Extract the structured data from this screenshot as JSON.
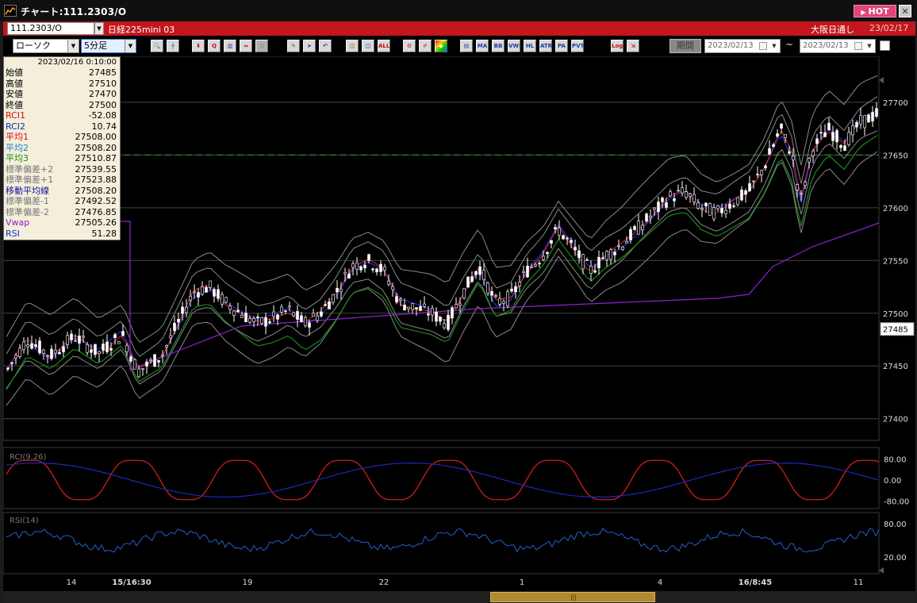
{
  "window": {
    "title": "チャート:111.2303/O",
    "hot_label": "HOT",
    "close_label": "✕"
  },
  "symbol_bar": {
    "code": "111.2303/O",
    "name": "日経225mini 03",
    "market": "大阪日通し",
    "date": "23/02/17"
  },
  "toolbar": {
    "chart_type": "ローソク",
    "interval": "5分足",
    "period_label": "期間",
    "date_from": "2023/02/13",
    "date_to": "2023/02/13",
    "tilde": "~",
    "buttons": [
      {
        "icon": "zoom-icon",
        "label": "🔍",
        "style": ""
      },
      {
        "icon": "crosshair-icon",
        "label": "┼",
        "style": ""
      },
      {
        "icon": "download-icon",
        "label": "⬇",
        "style": "red"
      },
      {
        "icon": "magnify-chart-icon",
        "label": "Q",
        "style": "red"
      },
      {
        "icon": "bar-chart-icon",
        "label": "▥",
        "style": ""
      },
      {
        "icon": "split-icon",
        "label": "⇔",
        "style": "red"
      },
      {
        "icon": "disabled-icon",
        "label": "▦",
        "style": "dis"
      },
      {
        "icon": "pencil-icon",
        "label": "✎",
        "style": "grn"
      },
      {
        "icon": "pointer-icon",
        "label": "➤",
        "style": ""
      },
      {
        "icon": "undo-icon",
        "label": "↶",
        "style": ""
      },
      {
        "icon": "box-icon",
        "label": "◫",
        "style": "red"
      },
      {
        "icon": "box-alt-icon",
        "label": "◫",
        "style": ""
      },
      {
        "icon": "all-icon",
        "label": "ALL",
        "style": "red"
      },
      {
        "icon": "settings-icon",
        "label": "⚙",
        "style": "red"
      },
      {
        "icon": "brush-icon",
        "label": "✐",
        "style": "red"
      },
      {
        "icon": "palette-icon",
        "label": "◆",
        "style": "rb"
      },
      {
        "icon": "table-icon",
        "label": "▤",
        "style": ""
      },
      {
        "icon": "ma-icon",
        "label": "MA",
        "style": ""
      },
      {
        "icon": "bb-icon",
        "label": "BB",
        "style": ""
      },
      {
        "icon": "vwap-icon",
        "label": "VWE",
        "style": ""
      },
      {
        "icon": "hl-icon",
        "label": "HL",
        "style": ""
      },
      {
        "icon": "atr-icon",
        "label": "ATR",
        "style": ""
      },
      {
        "icon": "pa-icon",
        "label": "PA",
        "style": ""
      },
      {
        "icon": "pvt-icon",
        "label": "PVT",
        "style": ""
      },
      {
        "icon": "log-icon",
        "label": "Log",
        "style": "red"
      },
      {
        "icon": "export-icon",
        "label": "⇲",
        "style": "red"
      }
    ]
  },
  "info_panel": {
    "timestamp": "2023/02/16 0:10:00",
    "rows": [
      {
        "label": "始値",
        "value": "27485",
        "color": "#000000"
      },
      {
        "label": "高値",
        "value": "27510",
        "color": "#000000"
      },
      {
        "label": "安値",
        "value": "27470",
        "color": "#000000"
      },
      {
        "label": "終値",
        "value": "27500",
        "color": "#000000"
      },
      {
        "label": "RCI1",
        "value": "-52.08",
        "color": "#d01010"
      },
      {
        "label": "RCI2",
        "value": "10.74",
        "color": "#1030c0"
      },
      {
        "label": "平均1",
        "value": "27508.00",
        "color": "#d01010"
      },
      {
        "label": "平均2",
        "value": "27508.20",
        "color": "#1c7fd0"
      },
      {
        "label": "平均3",
        "value": "27510.87",
        "color": "#1a8a1a"
      },
      {
        "label": "標準偏差+2",
        "value": "27539.55",
        "color": "#777777"
      },
      {
        "label": "標準偏差+1",
        "value": "27523.88",
        "color": "#777777"
      },
      {
        "label": "移動平均線",
        "value": "27508.20",
        "color": "#1010a0"
      },
      {
        "label": "標準偏差-1",
        "value": "27492.52",
        "color": "#777777"
      },
      {
        "label": "標準偏差-2",
        "value": "27476.85",
        "color": "#777777"
      },
      {
        "label": "Vwap",
        "value": "27505.26",
        "color": "#8a20c0"
      },
      {
        "label": "RSI",
        "value": "51.28",
        "color": "#1030c0"
      }
    ]
  },
  "chart_data": {
    "type": "line",
    "price_panel": {
      "y_ticks": [
        27700,
        27650,
        27600,
        27550,
        27500,
        27450,
        27400
      ],
      "ylim": [
        27390,
        27730
      ],
      "last_price": 27485,
      "dashed_level": 27650
    },
    "rci_panel": {
      "title": "RCI(9,26)",
      "y_ticks": [
        "80.00",
        "0.00",
        "-80.00"
      ]
    },
    "rsi_panel": {
      "title": "RSI(14)",
      "y_ticks": [
        "80.00",
        "20.00"
      ]
    },
    "x_tick_labels": [
      {
        "label": "14",
        "bold": false
      },
      {
        "label": "15/16:30",
        "bold": true
      },
      {
        "label": "19",
        "bold": false
      },
      {
        "label": "22",
        "bold": false
      },
      {
        "label": "1",
        "bold": false
      },
      {
        "label": "4",
        "bold": false
      },
      {
        "label": "16/8:45",
        "bold": true
      },
      {
        "label": "11",
        "bold": false
      }
    ]
  },
  "colors": {
    "up_candle": "#000000",
    "candle_outline": "#ffffff",
    "ma1": "#e02020",
    "ma2": "#2030d0",
    "ma3": "#1a8a1a",
    "bands": "#8a8a8a",
    "vwap": "#9020d0",
    "rci_fast": "#e02020",
    "rci_slow": "#1a2ab8",
    "rsi": "#2060d0",
    "dashed": "#2aa02a"
  }
}
